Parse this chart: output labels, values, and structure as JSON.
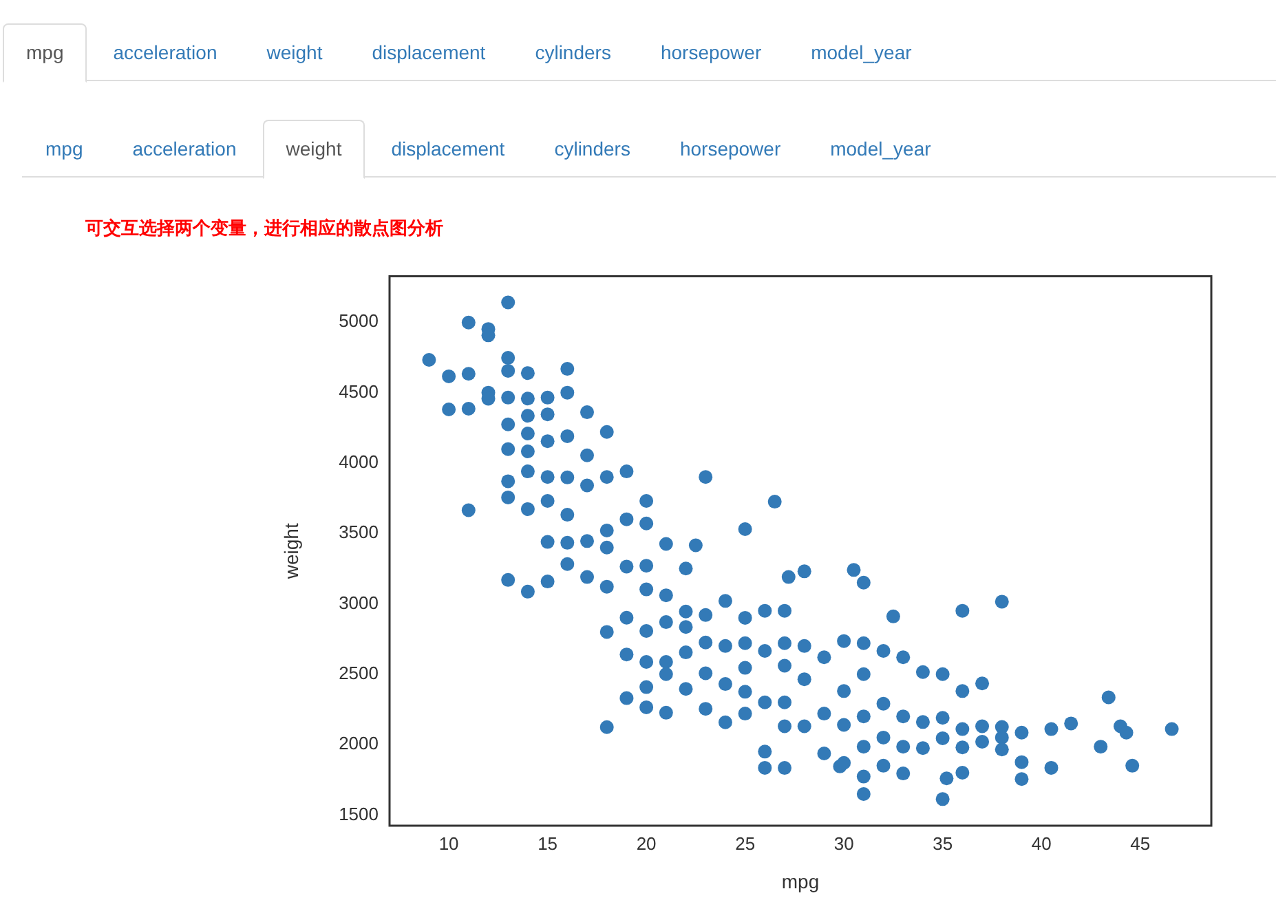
{
  "chart_data": {
    "type": "scatter",
    "title": "可交互选择两个变量，进行相应的散点图分析",
    "xlabel": "mpg",
    "ylabel": "weight",
    "annotations": [
      "mpg",
      "acceleration",
      "weight",
      "displacement",
      "cylinders",
      "horsepower",
      "model_year",
      "mpg",
      "acceleration",
      "weight",
      "displacement",
      "cylinders",
      "horsepower",
      "model_year"
    ],
    "xlim": [
      7,
      48.6
    ],
    "ylim": [
      1424,
      5325
    ],
    "xticks": [
      10,
      15,
      20,
      25,
      30,
      35,
      40,
      45
    ],
    "yticks": [
      1500,
      2000,
      2500,
      3000,
      3500,
      4000,
      4500,
      5000
    ],
    "grid": false,
    "legend": false,
    "marker": "circle",
    "series": [
      {
        "color": "#337ab7",
        "x": [
          9,
          10,
          10,
          11,
          11,
          11,
          11,
          12,
          12,
          12,
          12,
          13,
          13,
          13,
          13,
          13,
          13,
          13,
          13,
          13,
          14,
          14,
          14,
          14,
          14,
          14,
          14,
          14,
          15,
          15,
          15,
          15,
          15,
          15,
          15,
          16,
          16,
          16,
          16,
          16,
          16,
          16,
          17,
          17,
          17,
          17,
          17,
          18,
          18,
          18,
          18,
          18,
          18,
          18,
          19,
          19,
          19,
          19,
          19,
          19,
          20,
          20,
          20,
          20,
          20,
          20,
          20,
          20,
          21,
          21,
          21,
          21,
          21,
          21,
          22,
          22,
          22,
          22,
          22,
          22.5,
          23,
          23,
          23,
          23,
          23,
          24,
          24,
          24,
          24,
          25,
          25,
          25,
          25,
          25,
          25,
          26,
          26,
          26,
          26,
          26,
          26.5,
          27,
          27,
          27,
          27,
          27,
          27,
          27.2,
          28,
          28,
          28,
          28,
          29,
          29,
          29,
          29.8,
          30,
          30,
          30,
          30,
          30.5,
          31,
          31,
          31,
          31,
          31,
          31,
          31,
          32,
          32,
          32,
          32,
          32.5,
          33,
          33,
          33,
          33,
          34,
          34,
          34,
          35,
          35,
          35,
          35,
          35.2,
          36,
          36,
          36,
          36,
          36,
          37,
          37,
          37,
          38,
          38,
          38,
          38,
          39,
          39,
          39,
          40.5,
          40.5,
          41.5,
          43,
          43.4,
          44,
          44.3,
          44.6,
          46.6
        ],
        "values": [
          4732,
          4615,
          4380,
          4633,
          4385,
          4997,
          3664,
          4951,
          4906,
          4499,
          4456,
          5140,
          4746,
          4654,
          4464,
          4274,
          4098,
          3870,
          3755,
          3169,
          4638,
          4457,
          4335,
          4209,
          4082,
          3940,
          3672,
          3086,
          4464,
          4345,
          4154,
          3900,
          3730,
          3439,
          3158,
          4668,
          4499,
          4190,
          3897,
          3632,
          3433,
          3282,
          4360,
          4054,
          3840,
          3445,
          3190,
          4220,
          3900,
          3520,
          3399,
          3121,
          2800,
          2124,
          3940,
          3600,
          3264,
          2901,
          2640,
          2330,
          3730,
          3570,
          3270,
          3102,
          2807,
          2587,
          2408,
          2265,
          3425,
          3060,
          2870,
          2587,
          2500,
          2226,
          3250,
          2945,
          2835,
          2655,
          2395,
          3415,
          3900,
          2920,
          2725,
          2506,
          2254,
          3020,
          2700,
          2430,
          2158,
          3530,
          2900,
          2720,
          2545,
          2375,
          2220,
          2950,
          2665,
          2300,
          1950,
          1835,
          3725,
          2950,
          2720,
          2560,
          2300,
          2130,
          1834,
          3190,
          3230,
          2700,
          2464,
          2130,
          2620,
          2220,
          1937,
          1845,
          2735,
          2380,
          2140,
          1870,
          3240,
          3150,
          2720,
          2500,
          2200,
          1985,
          1773,
          1649,
          2665,
          2290,
          2050,
          1850,
          2910,
          2620,
          2200,
          1985,
          1795,
          2515,
          2160,
          1975,
          2500,
          2190,
          2045,
          1613,
          1760,
          2950,
          2380,
          2110,
          1980,
          1800,
          2434,
          2130,
          2020,
          3015,
          2125,
          2050,
          1965,
          2085,
          1875,
          1755,
          2110,
          1835,
          2150,
          1985,
          2335,
          2130,
          2085,
          1850,
          2110
        ]
      }
    ]
  }
}
